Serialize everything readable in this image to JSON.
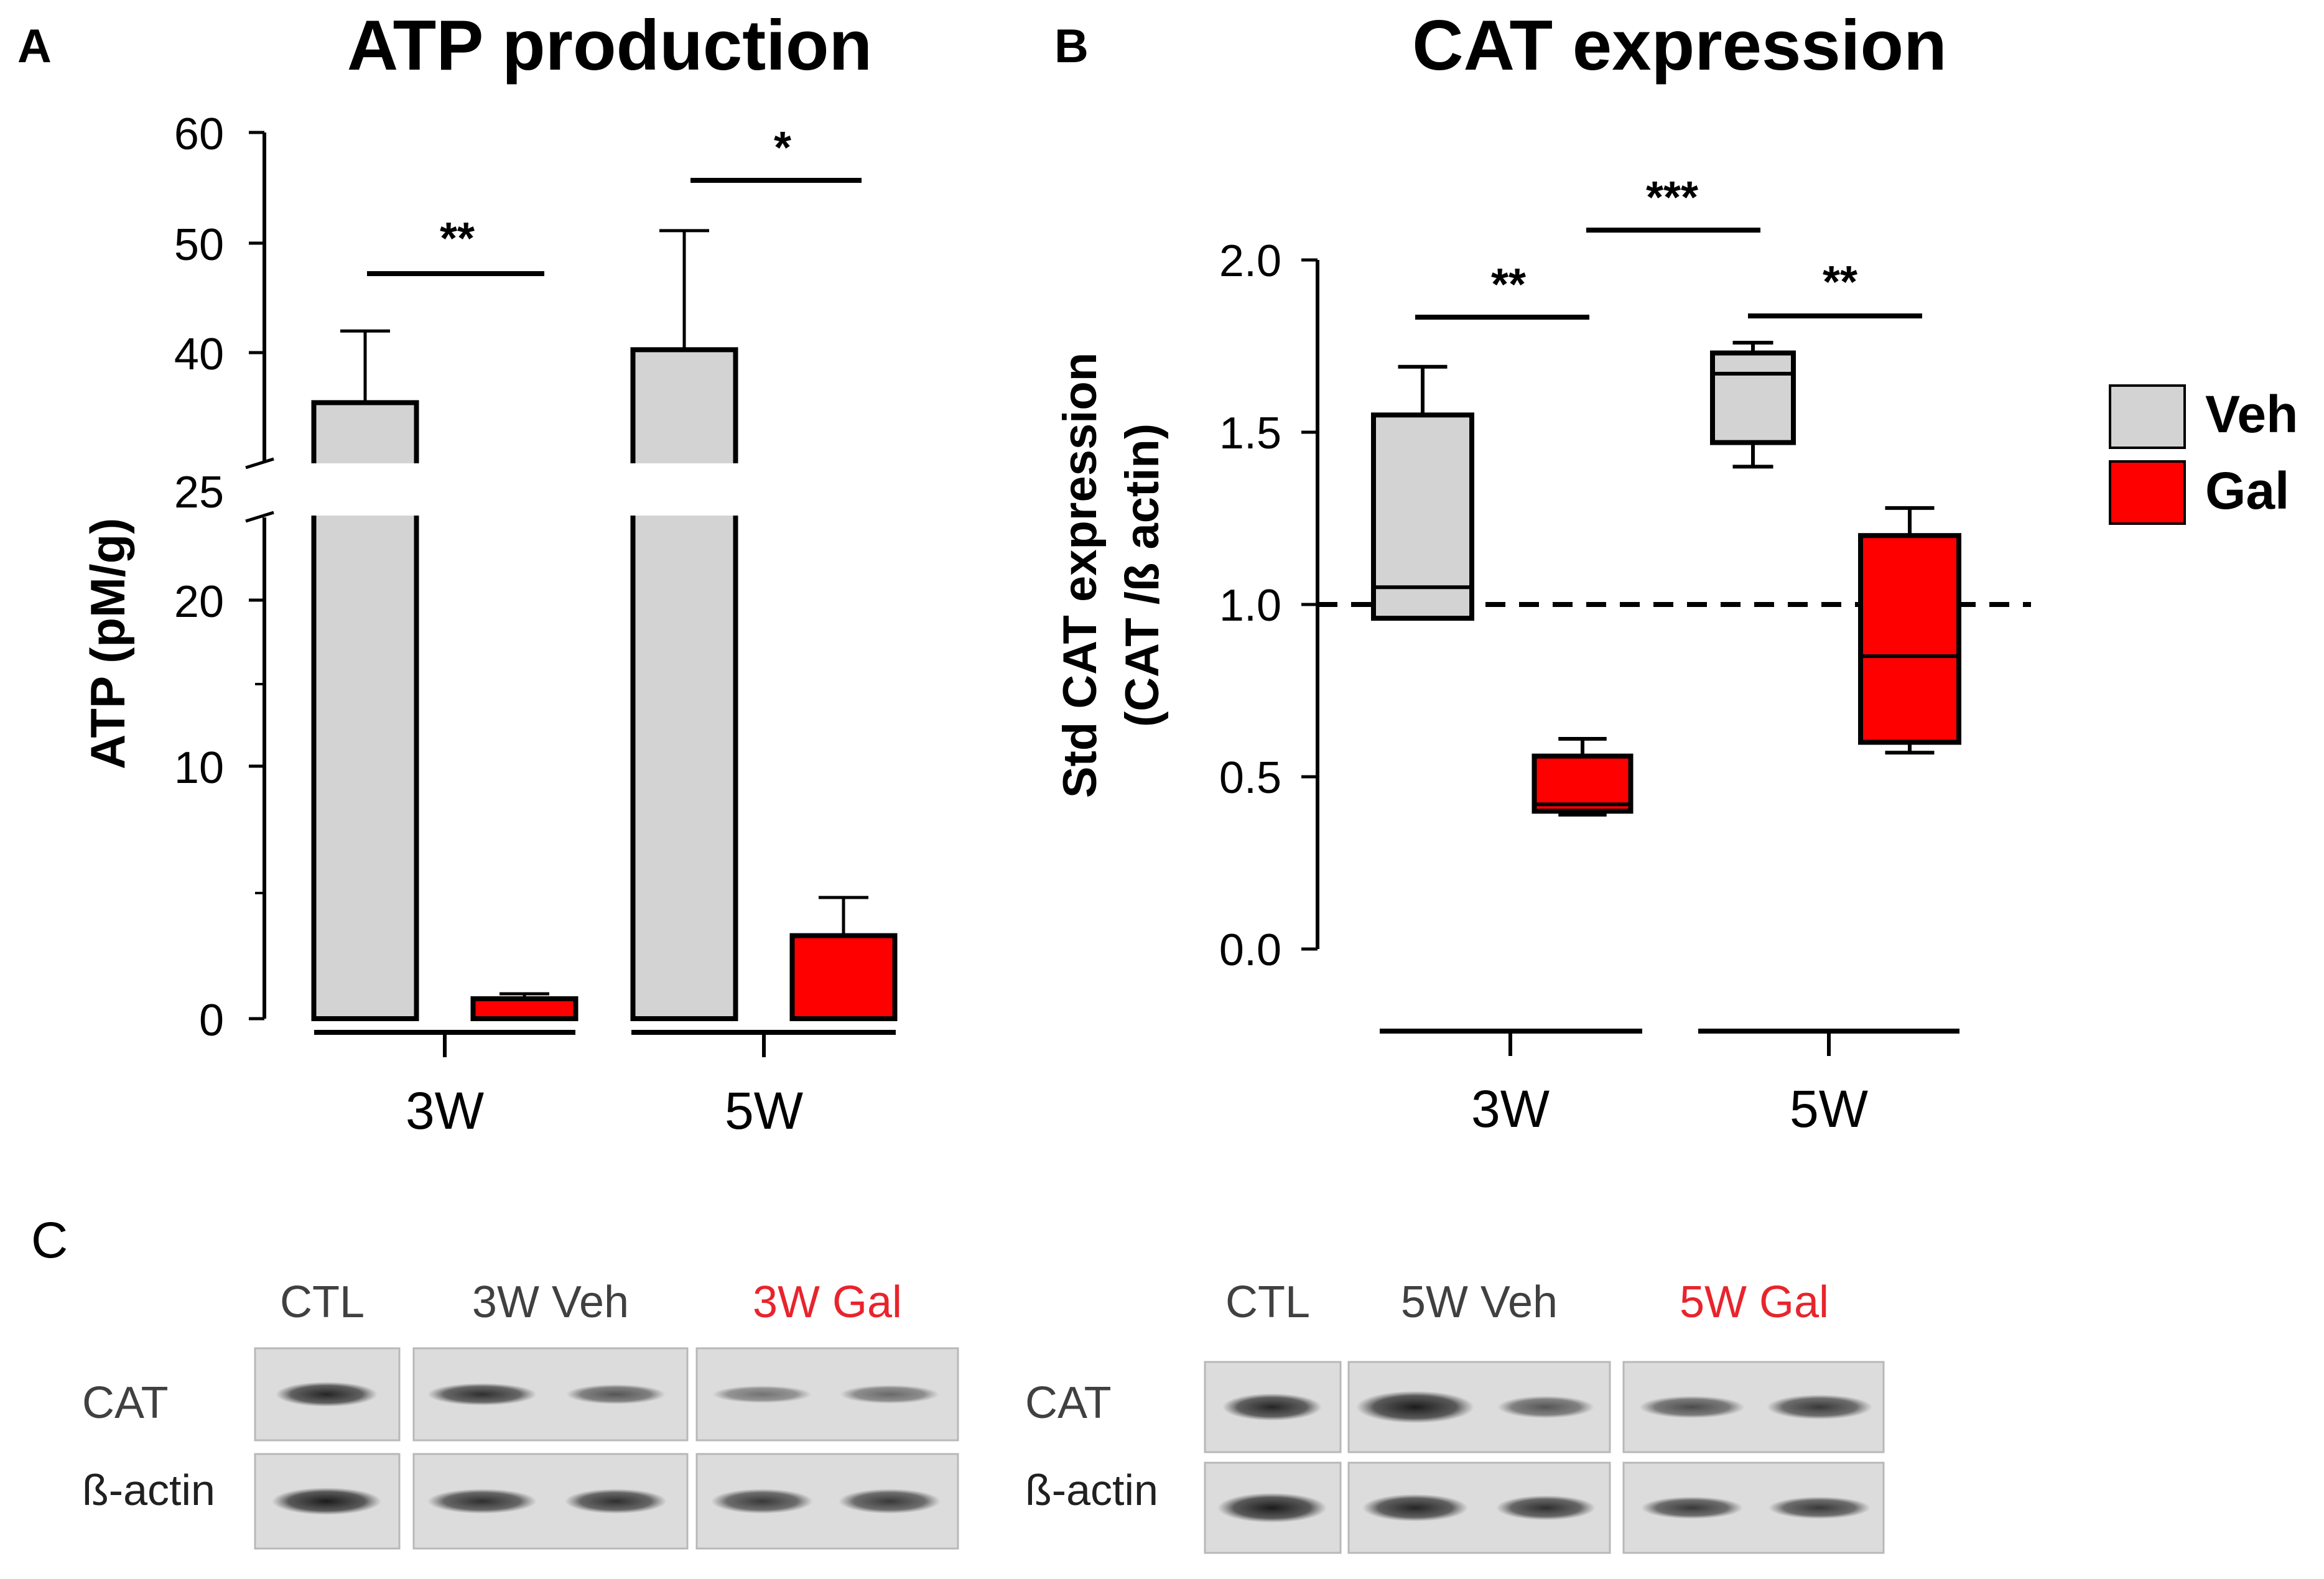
{
  "panels": {
    "a": {
      "letter": "A"
    },
    "b": {
      "letter": "B"
    },
    "c": {
      "letter": "C"
    }
  },
  "colors": {
    "veh": "#d3d3d3",
    "gal": "#ff0000",
    "axis": "#000000",
    "label_red": "#e8242c",
    "label_gray": "#404040"
  },
  "chart_data": [
    {
      "id": "atp",
      "type": "bar",
      "title": "ATP production",
      "ylabel": "ATP (pM/g)",
      "xlabel": "",
      "categories": [
        "3W",
        "5W"
      ],
      "series": [
        {
          "name": "Veh",
          "values": [
            35.5,
            40.3
          ],
          "error": [
            6.5,
            10.8
          ]
        },
        {
          "name": "Gal",
          "values": [
            1.2,
            5.0
          ],
          "error": [
            0.3,
            2.3
          ]
        }
      ],
      "y_axis_break": {
        "lower": [
          0,
          25
        ],
        "upper": [
          30,
          60
        ]
      },
      "yticks": [
        "0",
        "10",
        "20",
        "25",
        "40",
        "50",
        "60"
      ],
      "significance": [
        {
          "label": "**",
          "category": "3W"
        },
        {
          "label": "*",
          "category": "5W"
        }
      ]
    },
    {
      "id": "cat",
      "type": "box",
      "title": "CAT expression",
      "ylabel_line1": "Std CAT  expression",
      "ylabel_line2": "(CAT /ß actin)",
      "categories": [
        "3W",
        "5W"
      ],
      "ylim": [
        0,
        2.0
      ],
      "yticks": [
        "0.0",
        "0.5",
        "1.0",
        "1.5",
        "2.0"
      ],
      "reference_line": 1.0,
      "boxes": [
        {
          "group": "3W",
          "series": "Veh",
          "min": 0.96,
          "q1": 0.96,
          "median": 1.05,
          "q3": 1.55,
          "max": 1.69
        },
        {
          "group": "3W",
          "series": "Gal",
          "min": 0.39,
          "q1": 0.4,
          "median": 0.42,
          "q3": 0.56,
          "max": 0.61
        },
        {
          "group": "5W",
          "series": "Veh",
          "min": 1.4,
          "q1": 1.47,
          "median": 1.67,
          "q3": 1.73,
          "max": 1.76
        },
        {
          "group": "5W",
          "series": "Gal",
          "min": 0.57,
          "q1": 0.6,
          "median": 0.85,
          "q3": 1.2,
          "max": 1.28
        }
      ],
      "significance": [
        {
          "label": "**",
          "between": "3W Veh - 3W Gal"
        },
        {
          "label": "***",
          "between": "3W Gal - 5W Veh"
        },
        {
          "label": "**",
          "between": "5W Veh - 5W Gal"
        }
      ],
      "legend": [
        {
          "name": "Veh"
        },
        {
          "name": "Gal"
        }
      ]
    }
  ],
  "blot": {
    "left": {
      "headers": [
        "CTL",
        "3W Veh",
        "3W Gal"
      ],
      "rows": [
        "CAT",
        "ß-actin"
      ]
    },
    "right": {
      "headers": [
        "CTL",
        "5W Veh",
        "5W Gal"
      ],
      "rows": [
        "CAT",
        "ß-actin"
      ]
    }
  }
}
